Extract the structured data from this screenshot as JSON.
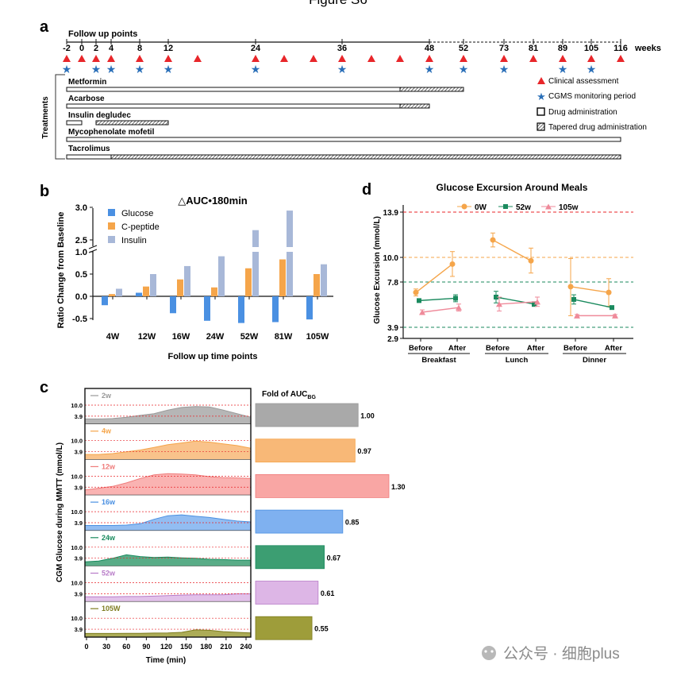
{
  "figure_title": "Figure S6",
  "watermark": "公众号 · 细胞plus",
  "panel_letters": [
    "a",
    "b",
    "c",
    "d"
  ],
  "colors": {
    "clinical": "#e8262a",
    "cgms": "#2a6fb8",
    "glucose": "#4a90e2",
    "cpeptide": "#f5a54a",
    "insulin": "#a8b8d8",
    "d_0w": "#f5a54a",
    "d_52w": "#1a8a5e",
    "d_105w": "#ef8a9a",
    "ref_red": "#e8262a",
    "ref_orange": "#f5a54a",
    "ref_green": "#1a8a5e"
  },
  "chart_data": [
    {
      "type": "timeline",
      "panel": "a",
      "title": "Follow up points",
      "unit_label": "weeks",
      "week_ticks": [
        "-2",
        "0",
        "2",
        "4",
        "8",
        "12",
        "24",
        "36",
        "48",
        "52",
        "73",
        "81",
        "89",
        "105",
        "116"
      ],
      "clinical_assessment_points": [
        "-2",
        "0",
        "2",
        "4",
        "8",
        "12",
        "16",
        "24",
        "28",
        "32",
        "36",
        "40",
        "44",
        "48",
        "52",
        "73",
        "81",
        "89",
        "105",
        "116"
      ],
      "cgms_points": [
        "-2",
        "2",
        "4",
        "8",
        "12",
        "24",
        "36",
        "48",
        "52",
        "73",
        "89",
        "105"
      ],
      "y_axis_label": "Treatments",
      "treatments": [
        {
          "name": "Metformin",
          "segments": [
            {
              "kind": "solid",
              "from": "-2",
              "to": "44"
            },
            {
              "kind": "tapered",
              "from": "44",
              "to": "52"
            }
          ]
        },
        {
          "name": "Acarbose",
          "segments": [
            {
              "kind": "solid",
              "from": "-2",
              "to": "44"
            },
            {
              "kind": "tapered",
              "from": "44",
              "to": "48"
            }
          ]
        },
        {
          "name": "Insulin degludec",
          "segments": [
            {
              "kind": "solid",
              "from": "-2",
              "to": "0"
            },
            {
              "kind": "tapered",
              "from": "2",
              "to": "12"
            }
          ]
        },
        {
          "name": "Mycophenolate mofetil",
          "segments": [
            {
              "kind": "solid",
              "from": "-2",
              "to": "116"
            }
          ]
        },
        {
          "name": "Tacrolimus",
          "segments": [
            {
              "kind": "solid",
              "from": "-2",
              "to": "4"
            },
            {
              "kind": "tapered",
              "from": "4",
              "to": "116"
            }
          ]
        }
      ],
      "legend": [
        "Clinical assessment",
        "CGMS monitoring period",
        "Drug administration",
        "Tapered drug administration"
      ]
    },
    {
      "type": "bar",
      "panel": "b",
      "title": "△AUC•180min",
      "xlabel": "Follow up time points",
      "ylabel": "Ratio Change from Baseline",
      "categories": [
        "4W",
        "12W",
        "16W",
        "24W",
        "52W",
        "81W",
        "105W"
      ],
      "series": [
        {
          "name": "Glucose",
          "values": [
            -0.2,
            0.08,
            -0.38,
            -0.55,
            -0.6,
            -0.58,
            -0.52
          ]
        },
        {
          "name": "C-peptide",
          "values": [
            0.05,
            0.22,
            0.38,
            0.2,
            0.63,
            0.83,
            0.5
          ]
        },
        {
          "name": "Insulin",
          "values": [
            0.17,
            0.5,
            0.68,
            0.9,
            2.65,
            2.95,
            0.72
          ]
        }
      ],
      "y_ticks_lower": [
        "-0.5",
        "0.0",
        "0.5",
        "1.0"
      ],
      "y_ticks_upper": [
        "2.5",
        "3.0"
      ],
      "axis_break": [
        1.0,
        2.5
      ],
      "legend_position": "top-left"
    },
    {
      "type": "area",
      "panel": "c",
      "ylabel": "CGM Glucose during MMTT (mmol/L)",
      "xlabel": "Time (min)",
      "x_ticks": [
        "0",
        "30",
        "60",
        "90",
        "120",
        "150",
        "180",
        "210",
        "240"
      ],
      "ref_labels": [
        "10.0",
        "3.9"
      ],
      "bar_title": "Fold of AUC",
      "bar_title_sub": "BG",
      "rows": [
        {
          "label": "2w",
          "fold": "1.00",
          "fold_value": 1.0,
          "color": "#a9a9a9",
          "line": "#999999",
          "levels": [
            0.2,
            0.2,
            0.22,
            0.3,
            0.4,
            0.5,
            0.7,
            0.85,
            0.9,
            0.88,
            0.7,
            0.5,
            0.3
          ]
        },
        {
          "label": "4w",
          "fold": "0.97",
          "fold_value": 0.97,
          "color": "#f8b877",
          "line": "#f5a54a",
          "levels": [
            0.2,
            0.2,
            0.25,
            0.35,
            0.45,
            0.6,
            0.75,
            0.85,
            0.95,
            0.9,
            0.8,
            0.7,
            0.55
          ]
        },
        {
          "label": "12w",
          "fold": "1.30",
          "fold_value": 1.3,
          "color": "#f9a6a4",
          "line": "#ef7b7a",
          "levels": [
            0.2,
            0.3,
            0.4,
            0.6,
            0.85,
            1.05,
            1.12,
            1.1,
            1.05,
            0.95,
            0.9,
            0.88,
            0.85
          ]
        },
        {
          "label": "16w",
          "fold": "0.85",
          "fold_value": 0.85,
          "color": "#7fb1f0",
          "line": "#4a90e2",
          "levels": [
            0.2,
            0.2,
            0.2,
            0.22,
            0.3,
            0.55,
            0.75,
            0.8,
            0.72,
            0.65,
            0.55,
            0.45,
            0.4
          ]
        },
        {
          "label": "24w",
          "fold": "0.67",
          "fold_value": 0.67,
          "color": "#3c9e72",
          "line": "#1a8a5e",
          "levels": [
            0.15,
            0.2,
            0.35,
            0.55,
            0.45,
            0.4,
            0.42,
            0.38,
            0.35,
            0.3,
            0.28,
            0.25,
            0.25
          ]
        },
        {
          "label": "52w",
          "fold": "0.61",
          "fold_value": 0.61,
          "color": "#ddb6e6",
          "line": "#b87cc8",
          "levels": [
            0.18,
            0.18,
            0.18,
            0.2,
            0.2,
            0.22,
            0.25,
            0.28,
            0.3,
            0.3,
            0.3,
            0.35,
            0.35
          ]
        },
        {
          "label": "105W",
          "fold": "0.55",
          "fold_value": 0.55,
          "color": "#9e9d3a",
          "line": "#7e7d20",
          "levels": [
            0.12,
            0.12,
            0.12,
            0.13,
            0.13,
            0.14,
            0.15,
            0.18,
            0.32,
            0.3,
            0.22,
            0.18,
            0.15
          ]
        }
      ]
    },
    {
      "type": "line",
      "panel": "d",
      "title": "Glucose Excursion Around Meals",
      "ylabel": "Glucose Excursion (mmol/L)",
      "y_ticks": [
        "13.9",
        "10.0",
        "7.8",
        "3.9",
        "2.9"
      ],
      "ref_lines": [
        13.9,
        10.0,
        7.8,
        3.9
      ],
      "ylim": [
        2.9,
        13.9
      ],
      "meals": [
        "Breakfast",
        "Lunch",
        "Dinner"
      ],
      "phases": [
        "Before",
        "After"
      ],
      "series": [
        {
          "name": "0W",
          "marker": "circle",
          "points": [
            [
              6.9,
              9.4
            ],
            [
              11.5,
              9.7
            ],
            [
              7.4,
              6.9
            ]
          ],
          "err": [
            [
              0.3,
              1.1
            ],
            [
              0.6,
              1.1
            ],
            [
              2.5,
              1.2
            ]
          ]
        },
        {
          "name": "52w",
          "marker": "square",
          "points": [
            [
              6.2,
              6.4
            ],
            [
              6.5,
              5.9
            ],
            [
              6.3,
              5.6
            ]
          ],
          "err": [
            [
              0.1,
              0.3
            ],
            [
              0.5,
              0.2
            ],
            [
              0.4,
              0.1
            ]
          ]
        },
        {
          "name": "105w",
          "marker": "triangle",
          "points": [
            [
              5.2,
              5.6
            ],
            [
              5.9,
              6.1
            ],
            [
              4.9,
              4.9
            ]
          ],
          "err": [
            [
              0.2,
              0.3
            ],
            [
              0.6,
              0.4
            ],
            [
              0.1,
              0.1
            ]
          ]
        }
      ]
    }
  ]
}
